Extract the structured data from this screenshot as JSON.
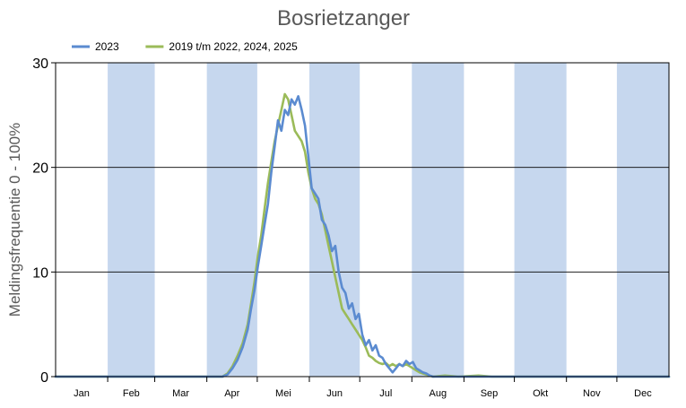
{
  "chart_data": {
    "type": "line",
    "title": "Bosrietzanger",
    "xlabel": "",
    "ylabel": "Meldingsfrequentie 0 - 100%",
    "ylim": [
      0,
      30
    ],
    "yticks": [
      0,
      10,
      20,
      30
    ],
    "months": [
      "Jan",
      "Feb",
      "Mar",
      "Apr",
      "Mei",
      "Jun",
      "Jul",
      "Aug",
      "Sep",
      "Okt",
      "Nov",
      "Dec"
    ],
    "shaded_months": [
      "Feb",
      "Apr",
      "Jun",
      "Aug",
      "Okt",
      "Dec"
    ],
    "grid": "horizontal",
    "legend_position": "top-left",
    "colors": {
      "series_2023": "#5b8bd0",
      "series_other": "#9bbb59",
      "band": "#c6d7ee",
      "grid": "#000000"
    },
    "x_unit": "day of year (1-365)",
    "series": [
      {
        "name": "2023",
        "color": "#5b8bd0",
        "points": [
          [
            1,
            0
          ],
          [
            100,
            0
          ],
          [
            103,
            0.2
          ],
          [
            106,
            0.8
          ],
          [
            109,
            1.6
          ],
          [
            112,
            2.8
          ],
          [
            115,
            4.5
          ],
          [
            117,
            6.5
          ],
          [
            119,
            8.2
          ],
          [
            121,
            10.5
          ],
          [
            123,
            12.5
          ],
          [
            125,
            14.5
          ],
          [
            127,
            16.5
          ],
          [
            129,
            19.5
          ],
          [
            131,
            22.0
          ],
          [
            133,
            24.5
          ],
          [
            135,
            23.5
          ],
          [
            137,
            25.5
          ],
          [
            139,
            25.0
          ],
          [
            141,
            26.5
          ],
          [
            143,
            26.0
          ],
          [
            145,
            26.8
          ],
          [
            147,
            25.5
          ],
          [
            149,
            24.0
          ],
          [
            151,
            21.0
          ],
          [
            153,
            18.0
          ],
          [
            155,
            17.5
          ],
          [
            157,
            17.0
          ],
          [
            159,
            15.0
          ],
          [
            161,
            14.5
          ],
          [
            163,
            13.5
          ],
          [
            165,
            12.0
          ],
          [
            167,
            12.5
          ],
          [
            169,
            10.0
          ],
          [
            171,
            8.5
          ],
          [
            173,
            8.0
          ],
          [
            175,
            6.5
          ],
          [
            177,
            7.0
          ],
          [
            179,
            5.5
          ],
          [
            181,
            6.0
          ],
          [
            183,
            4.0
          ],
          [
            185,
            3.0
          ],
          [
            187,
            3.5
          ],
          [
            189,
            2.5
          ],
          [
            191,
            3.0
          ],
          [
            193,
            2.0
          ],
          [
            195,
            1.8
          ],
          [
            197,
            1.2
          ],
          [
            199,
            0.8
          ],
          [
            201,
            0.4
          ],
          [
            203,
            0.8
          ],
          [
            205,
            1.2
          ],
          [
            207,
            1.0
          ],
          [
            209,
            1.5
          ],
          [
            211,
            1.2
          ],
          [
            213,
            1.4
          ],
          [
            215,
            0.8
          ],
          [
            217,
            0.6
          ],
          [
            219,
            0.4
          ],
          [
            221,
            0.3
          ],
          [
            223,
            0.1
          ],
          [
            225,
            0
          ],
          [
            365,
            0
          ]
        ]
      },
      {
        "name": "2019 t/m 2022, 2024, 2025",
        "color": "#9bbb59",
        "points": [
          [
            1,
            0
          ],
          [
            100,
            0
          ],
          [
            103,
            0.3
          ],
          [
            106,
            1.0
          ],
          [
            109,
            2.0
          ],
          [
            112,
            3.2
          ],
          [
            115,
            5.0
          ],
          [
            117,
            7.0
          ],
          [
            119,
            9.0
          ],
          [
            121,
            11.5
          ],
          [
            123,
            13.5
          ],
          [
            125,
            16.0
          ],
          [
            127,
            18.5
          ],
          [
            129,
            20.5
          ],
          [
            131,
            22.5
          ],
          [
            133,
            24.0
          ],
          [
            135,
            25.5
          ],
          [
            137,
            27.0
          ],
          [
            139,
            26.5
          ],
          [
            141,
            25.0
          ],
          [
            143,
            23.5
          ],
          [
            145,
            23.0
          ],
          [
            147,
            22.5
          ],
          [
            149,
            21.5
          ],
          [
            151,
            19.5
          ],
          [
            153,
            18.0
          ],
          [
            155,
            17.0
          ],
          [
            157,
            16.5
          ],
          [
            159,
            15.5
          ],
          [
            161,
            14.0
          ],
          [
            163,
            12.5
          ],
          [
            165,
            11.0
          ],
          [
            167,
            9.5
          ],
          [
            169,
            8.0
          ],
          [
            171,
            6.5
          ],
          [
            173,
            6.0
          ],
          [
            175,
            5.5
          ],
          [
            177,
            5.0
          ],
          [
            179,
            4.5
          ],
          [
            181,
            4.0
          ],
          [
            183,
            3.5
          ],
          [
            185,
            2.8
          ],
          [
            187,
            2.0
          ],
          [
            189,
            1.8
          ],
          [
            191,
            1.5
          ],
          [
            193,
            1.3
          ],
          [
            195,
            1.2
          ],
          [
            197,
            1.3
          ],
          [
            199,
            1.0
          ],
          [
            201,
            1.2
          ],
          [
            203,
            1.0
          ],
          [
            205,
            1.2
          ],
          [
            207,
            1.0
          ],
          [
            209,
            1.2
          ],
          [
            211,
            1.0
          ],
          [
            213,
            0.8
          ],
          [
            215,
            0.6
          ],
          [
            217,
            0.4
          ],
          [
            219,
            0.3
          ],
          [
            221,
            0.2
          ],
          [
            223,
            0.1
          ],
          [
            225,
            0
          ],
          [
            232,
            0.1
          ],
          [
            240,
            0
          ],
          [
            252,
            0.1
          ],
          [
            260,
            0
          ],
          [
            365,
            0
          ]
        ]
      }
    ]
  }
}
